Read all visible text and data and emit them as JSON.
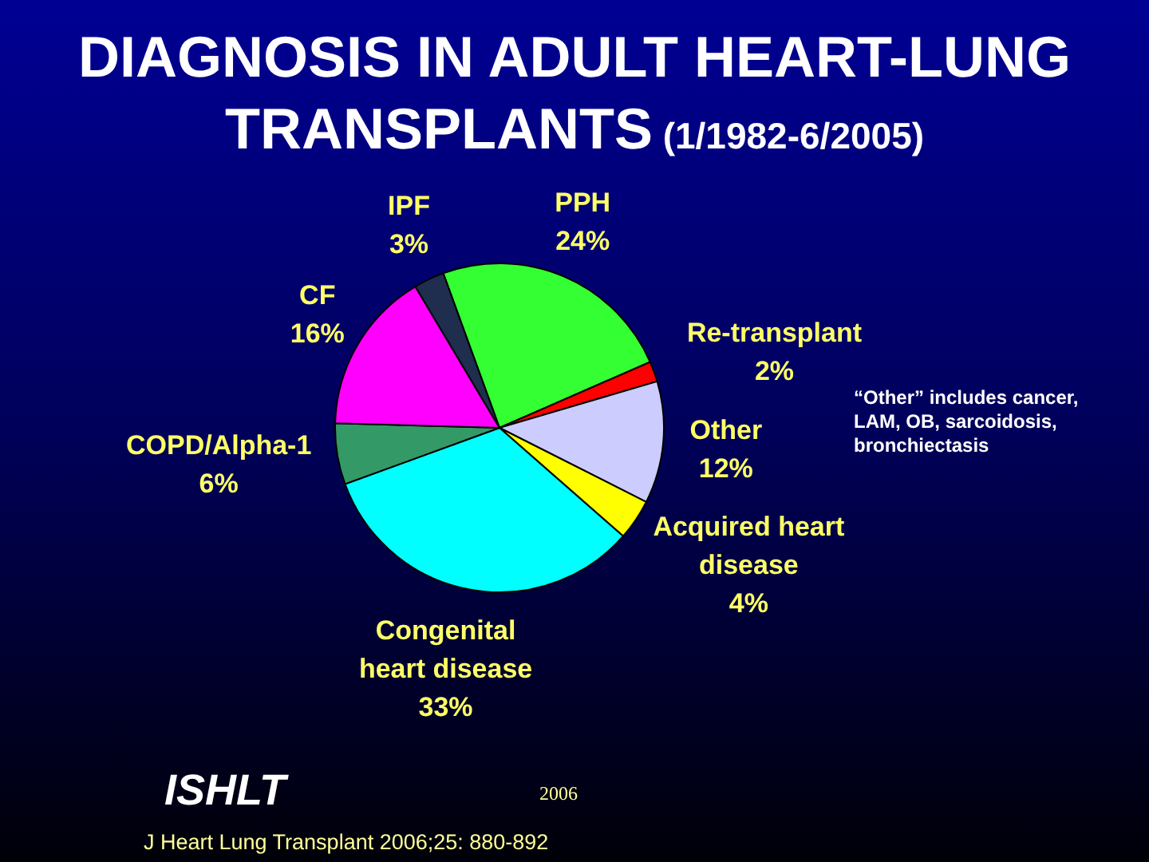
{
  "chart_data": {
    "type": "pie",
    "title": "DIAGNOSIS IN ADULT HEART-LUNG TRANSPLANTS (1/1982-6/2005)",
    "categories": [
      "PPH",
      "Re-transplant",
      "Other",
      "Acquired heart disease",
      "Congenital heart disease",
      "COPD/Alpha-1",
      "CF",
      "IPF"
    ],
    "values": [
      24,
      2,
      12,
      4,
      33,
      6,
      16,
      3
    ],
    "value_labels": [
      "24%",
      "2%",
      "12%",
      "4%",
      "33%",
      "6%",
      "16%",
      "3%"
    ],
    "colors": [
      "#33ff33",
      "#ff0000",
      "#ccccff",
      "#ffff00",
      "#00ffff",
      "#339966",
      "#ff00ff",
      "#1f2d4f"
    ],
    "annotations": [
      "“Other” includes cancer, LAM, OB, sarcoidosis, bronchiectasis",
      "ISHLT",
      "2006",
      "J Heart Lung Transplant 2006;25: 880-892"
    ]
  }
}
